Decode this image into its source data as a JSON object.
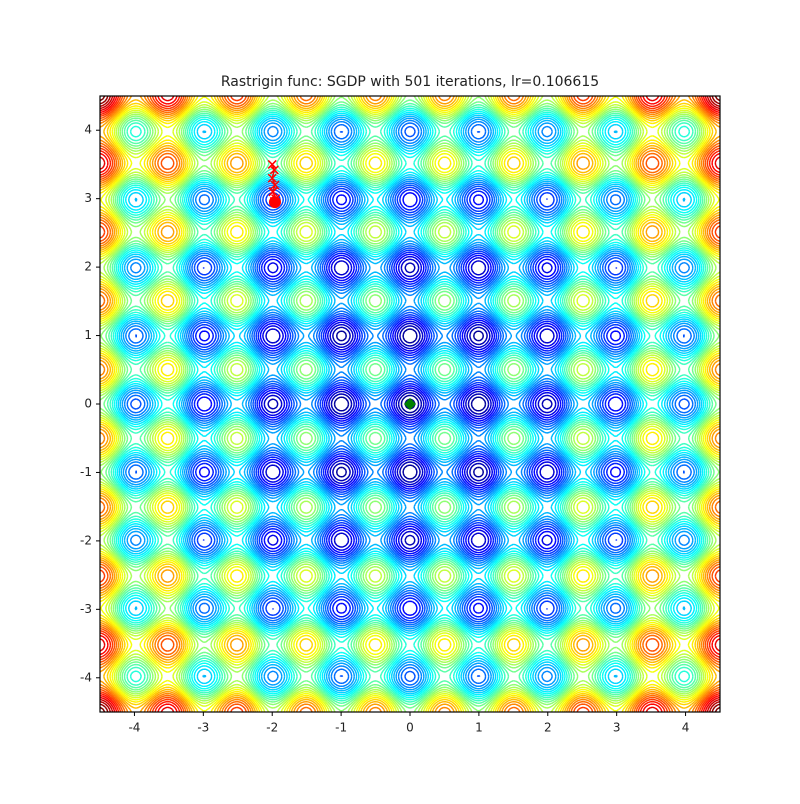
{
  "chart_data": {
    "type": "contour",
    "title": "Rastrigin func: SGDP with 501 iterations, lr=0.106615",
    "xlim": [
      -4.5,
      4.5
    ],
    "ylim": [
      -4.5,
      4.5
    ],
    "xticks": [
      -4,
      -3,
      -2,
      -1,
      0,
      1,
      2,
      3,
      4
    ],
    "yticks": [
      -4,
      -3,
      -2,
      -1,
      0,
      1,
      2,
      3,
      4
    ],
    "levels": [
      1,
      3,
      5,
      7,
      9,
      11,
      13,
      15,
      17,
      19,
      21,
      23,
      25,
      27,
      29,
      31,
      33,
      35,
      37,
      39,
      41,
      43,
      45,
      47,
      49,
      51,
      53,
      55,
      57,
      59,
      61,
      63,
      65,
      67,
      69,
      71,
      73,
      75,
      77,
      79
    ],
    "path": {
      "color": "#ff0000",
      "x": [
        -2.0,
        -1.97,
        -2.0,
        -1.96,
        -1.99,
        -1.95,
        -1.97,
        -1.96
      ],
      "y": [
        3.5,
        3.42,
        3.3,
        3.2,
        3.1,
        3.0,
        2.96,
        2.95
      ]
    },
    "minimum": {
      "x": 0,
      "y": 0,
      "color": "#008000"
    }
  }
}
